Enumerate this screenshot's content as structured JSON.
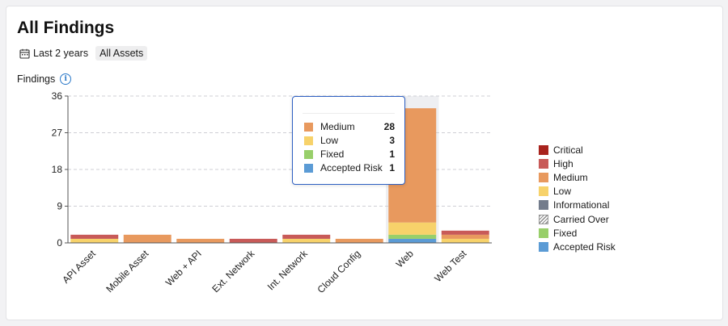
{
  "header": {
    "title": "All Findings",
    "date_filter": "Last 2 years",
    "asset_filter": "All Assets"
  },
  "chart_data": {
    "type": "bar",
    "stacked": true,
    "ylabel": "Findings",
    "ylim": [
      0,
      36
    ],
    "yticks": [
      "0",
      "9",
      "18",
      "27",
      "36"
    ],
    "grid": true,
    "legend_position": "right",
    "categories": [
      "API Asset",
      "Mobile Asset",
      "Web + API",
      "Ext. Network",
      "Int. Network",
      "Cloud Config",
      "Web",
      "Web Test"
    ],
    "series": [
      {
        "name": "Accepted Risk",
        "color": "#5b9bd5",
        "values": [
          0,
          0,
          0,
          0,
          0,
          0,
          1,
          0
        ]
      },
      {
        "name": "Fixed",
        "color": "#98cf6a",
        "values": [
          0,
          0,
          0,
          0,
          0,
          0,
          1,
          0
        ]
      },
      {
        "name": "Carried Over",
        "color": "#bcbcbc",
        "values": [
          0,
          0,
          0,
          0,
          0,
          0,
          0,
          0
        ]
      },
      {
        "name": "Informational",
        "color": "#737c8c",
        "values": [
          0,
          0,
          0,
          0,
          0,
          0,
          0,
          0
        ]
      },
      {
        "name": "Low",
        "color": "#f7d26a",
        "values": [
          1,
          0,
          0,
          0,
          1,
          0,
          3,
          1
        ]
      },
      {
        "name": "Medium",
        "color": "#e8995e",
        "values": [
          0,
          2,
          1,
          0,
          0,
          1,
          28,
          1
        ]
      },
      {
        "name": "High",
        "color": "#c85a58",
        "values": [
          1,
          0,
          0,
          1,
          1,
          0,
          0,
          1
        ]
      },
      {
        "name": "Critical",
        "color": "#a8231d",
        "values": [
          0,
          0,
          0,
          0,
          0,
          0,
          0,
          0
        ]
      }
    ],
    "highlighted_category": "Web"
  },
  "tooltip": {
    "rows": [
      {
        "label": "Medium",
        "value": "28",
        "color": "#e8995e"
      },
      {
        "label": "Low",
        "value": "3",
        "color": "#f7d26a"
      },
      {
        "label": "Fixed",
        "value": "1",
        "color": "#98cf6a"
      },
      {
        "label": "Accepted Risk",
        "value": "1",
        "color": "#5b9bd5"
      }
    ]
  },
  "legend": {
    "items": [
      {
        "label": "Critical",
        "color": "#a8231d"
      },
      {
        "label": "High",
        "color": "#c85a58"
      },
      {
        "label": "Medium",
        "color": "#e8995e"
      },
      {
        "label": "Low",
        "color": "#f7d26a"
      },
      {
        "label": "Informational",
        "color": "#737c8c"
      },
      {
        "label": "Carried Over",
        "color": "hatched"
      },
      {
        "label": "Fixed",
        "color": "#98cf6a"
      },
      {
        "label": "Accepted Risk",
        "color": "#5b9bd5"
      }
    ]
  },
  "icons": {
    "calendar": "calendar-icon",
    "info": "info-icon"
  }
}
